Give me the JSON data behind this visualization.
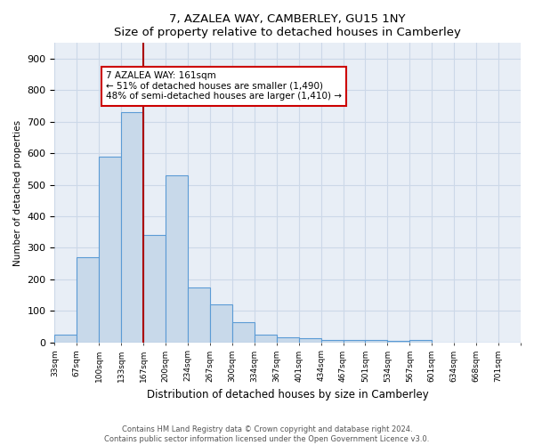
{
  "title": "7, AZALEA WAY, CAMBERLEY, GU15 1NY",
  "subtitle": "Size of property relative to detached houses in Camberley",
  "xlabel": "Distribution of detached houses by size in Camberley",
  "ylabel": "Number of detached properties",
  "footer_line1": "Contains HM Land Registry data © Crown copyright and database right 2024.",
  "footer_line2": "Contains public sector information licensed under the Open Government Licence v3.0.",
  "bin_labels": [
    "33sqm",
    "67sqm",
    "100sqm",
    "133sqm",
    "167sqm",
    "200sqm",
    "234sqm",
    "267sqm",
    "300sqm",
    "334sqm",
    "367sqm",
    "401sqm",
    "434sqm",
    "467sqm",
    "501sqm",
    "534sqm",
    "567sqm",
    "601sqm",
    "634sqm",
    "668sqm",
    "701sqm"
  ],
  "bar_values": [
    25,
    270,
    590,
    730,
    340,
    530,
    175,
    120,
    65,
    25,
    15,
    12,
    8,
    8,
    7,
    5,
    8,
    0,
    0,
    0,
    0
  ],
  "bar_color": "#c8d9ea",
  "bar_edge_color": "#5b9bd5",
  "bar_edge_width": 0.8,
  "red_line_x": 3.5,
  "red_line_color": "#aa0000",
  "ylim": [
    0,
    950
  ],
  "yticks": [
    0,
    100,
    200,
    300,
    400,
    500,
    600,
    700,
    800,
    900
  ],
  "annotation_text": "7 AZALEA WAY: 161sqm\n← 51% of detached houses are smaller (1,490)\n48% of semi-detached houses are larger (1,410) →",
  "annotation_box_color": "white",
  "annotation_box_edge_color": "#cc0000",
  "grid_color": "#ccd8e8",
  "background_color": "#e8eef6"
}
